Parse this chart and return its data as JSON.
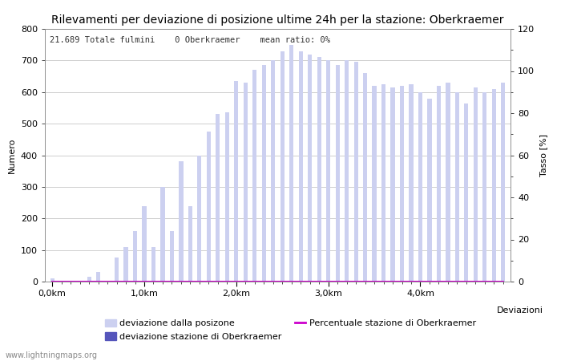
{
  "title": "Rilevamenti per deviazione di posizione ultime 24h per la stazione: Oberkraemer",
  "info_text": "21.689 Totale fulmini    0 Oberkraemer    mean ratio: 0%",
  "xlabel": "Deviazioni",
  "ylabel_left": "Numero",
  "ylabel_right": "Tasso [%]",
  "watermark": "www.lightningmaps.org",
  "bar_color_light": "#ccd0f0",
  "bar_color_dark": "#5555bb",
  "line_color": "#cc00cc",
  "background_color": "#ffffff",
  "grid_color": "#bbbbbb",
  "text_color": "#333333",
  "ylim_left": [
    0,
    800
  ],
  "ylim_right": [
    0,
    120
  ],
  "yticks_left": [
    0,
    100,
    200,
    300,
    400,
    500,
    600,
    700,
    800
  ],
  "yticks_right": [
    0,
    20,
    40,
    60,
    80,
    100,
    120
  ],
  "xtick_labels": [
    "0,0km",
    "1,0km",
    "2,0km",
    "3,0km",
    "4,0km"
  ],
  "xtick_positions": [
    0,
    10,
    20,
    30,
    40
  ],
  "legend_labels": [
    "deviazione dalla posizone",
    "deviazione stazione di Oberkraemer",
    "Percentuale stazione di Oberkraemer"
  ],
  "bar_values": [
    10,
    2,
    2,
    2,
    15,
    30,
    2,
    75,
    110,
    160,
    240,
    110,
    300,
    160,
    380,
    240,
    400,
    475,
    530,
    535,
    635,
    630,
    670,
    685,
    700,
    730,
    750,
    730,
    720,
    710,
    700,
    685,
    700,
    695,
    660,
    620,
    625,
    615,
    620,
    625,
    600,
    580,
    620,
    630,
    600,
    565,
    615,
    600,
    610,
    630
  ],
  "station_values": [
    0,
    0,
    0,
    0,
    0,
    0,
    0,
    0,
    0,
    0,
    0,
    0,
    0,
    0,
    0,
    0,
    0,
    0,
    0,
    0,
    0,
    0,
    0,
    0,
    0,
    0,
    0,
    0,
    0,
    0,
    0,
    0,
    0,
    0,
    0,
    0,
    0,
    0,
    0,
    0,
    0,
    0,
    0,
    0,
    0,
    0,
    0,
    0,
    0,
    0
  ],
  "percentage_values": [
    0,
    0,
    0,
    0,
    0,
    0,
    0,
    0,
    0,
    0,
    0,
    0,
    0,
    0,
    0,
    0,
    0,
    0,
    0,
    0,
    0,
    0,
    0,
    0,
    0,
    0,
    0,
    0,
    0,
    0,
    0,
    0,
    0,
    0,
    0,
    0,
    0,
    0,
    0,
    0,
    0,
    0,
    0,
    0,
    0,
    0,
    0,
    0,
    0,
    0
  ],
  "n_bars": 50,
  "title_fontsize": 10,
  "axis_fontsize": 8,
  "tick_fontsize": 8,
  "info_fontsize": 7.5
}
